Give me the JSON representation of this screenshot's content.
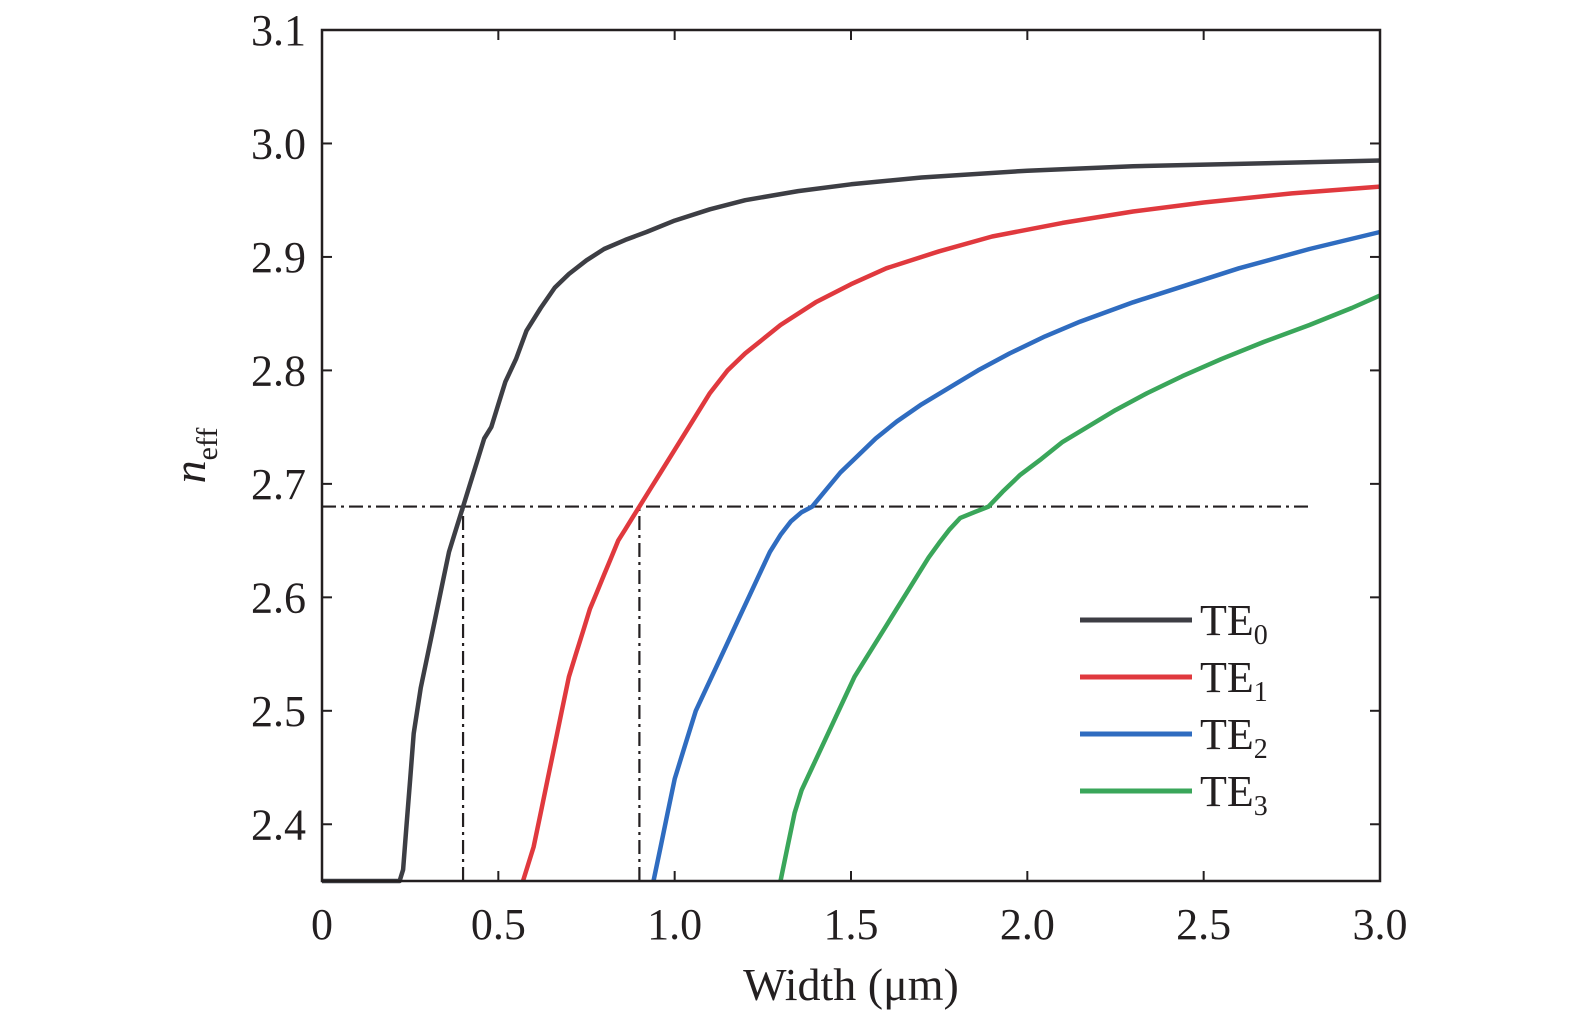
{
  "chart_data": {
    "type": "line",
    "xlabel": "Width (μm)",
    "ylabel": {
      "main": "n",
      "sub": "eff"
    },
    "xlim": [
      0,
      3.0
    ],
    "ylim": [
      2.35,
      3.1
    ],
    "x_ticks": [
      0,
      0.5,
      1.0,
      1.5,
      2.0,
      2.5,
      3.0
    ],
    "x_tick_labels": [
      "0",
      "0.5",
      "1.0",
      "1.5",
      "2.0",
      "2.5",
      "3.0"
    ],
    "y_ticks": [
      2.4,
      2.5,
      2.6,
      2.7,
      2.8,
      2.9,
      3.0,
      3.1
    ],
    "y_tick_labels": [
      "2.4",
      "2.5",
      "2.6",
      "2.7",
      "2.8",
      "2.9",
      "3.0",
      "3.1"
    ],
    "grid": false,
    "legend_position": "lower-right",
    "series": [
      {
        "name": {
          "main": "TE",
          "sub": "0"
        },
        "color": "#3d3e44",
        "x": [
          0.0,
          0.22,
          0.23,
          0.24,
          0.25,
          0.26,
          0.28,
          0.3,
          0.32,
          0.34,
          0.36,
          0.38,
          0.4,
          0.42,
          0.44,
          0.46,
          0.48,
          0.5,
          0.52,
          0.55,
          0.58,
          0.62,
          0.66,
          0.7,
          0.75,
          0.8,
          0.86,
          0.92,
          1.0,
          1.1,
          1.2,
          1.35,
          1.5,
          1.7,
          2.0,
          2.3,
          2.6,
          3.0
        ],
        "y": [
          2.35,
          2.35,
          2.36,
          2.4,
          2.44,
          2.48,
          2.52,
          2.55,
          2.58,
          2.61,
          2.64,
          2.66,
          2.68,
          2.7,
          2.72,
          2.74,
          2.75,
          2.77,
          2.79,
          2.81,
          2.835,
          2.855,
          2.873,
          2.885,
          2.897,
          2.907,
          2.915,
          2.922,
          2.932,
          2.942,
          2.95,
          2.958,
          2.964,
          2.97,
          2.976,
          2.98,
          2.982,
          2.985
        ]
      },
      {
        "name": {
          "main": "TE",
          "sub": "1"
        },
        "color": "#e0393e",
        "x": [
          0.57,
          0.6,
          0.62,
          0.64,
          0.66,
          0.68,
          0.7,
          0.72,
          0.74,
          0.76,
          0.78,
          0.8,
          0.82,
          0.84,
          0.86,
          0.88,
          0.9,
          0.93,
          0.96,
          1.0,
          1.05,
          1.1,
          1.15,
          1.2,
          1.3,
          1.4,
          1.5,
          1.6,
          1.75,
          1.9,
          2.1,
          2.3,
          2.5,
          2.75,
          3.0
        ],
        "y": [
          2.35,
          2.38,
          2.41,
          2.44,
          2.47,
          2.5,
          2.53,
          2.55,
          2.57,
          2.59,
          2.605,
          2.62,
          2.635,
          2.65,
          2.66,
          2.67,
          2.68,
          2.695,
          2.71,
          2.73,
          2.755,
          2.78,
          2.8,
          2.815,
          2.84,
          2.86,
          2.876,
          2.89,
          2.905,
          2.918,
          2.93,
          2.94,
          2.948,
          2.956,
          2.962
        ]
      },
      {
        "name": {
          "main": "TE",
          "sub": "2"
        },
        "color": "#2f6cc0",
        "x": [
          0.94,
          0.96,
          0.98,
          1.0,
          1.03,
          1.06,
          1.09,
          1.12,
          1.15,
          1.18,
          1.21,
          1.24,
          1.27,
          1.3,
          1.33,
          1.36,
          1.39,
          1.43,
          1.47,
          1.52,
          1.57,
          1.63,
          1.7,
          1.78,
          1.86,
          1.95,
          2.05,
          2.15,
          2.3,
          2.45,
          2.6,
          2.8,
          3.0
        ],
        "y": [
          2.35,
          2.38,
          2.41,
          2.44,
          2.47,
          2.5,
          2.52,
          2.54,
          2.56,
          2.58,
          2.6,
          2.62,
          2.64,
          2.655,
          2.667,
          2.675,
          2.68,
          2.695,
          2.71,
          2.725,
          2.74,
          2.755,
          2.77,
          2.785,
          2.8,
          2.815,
          2.83,
          2.843,
          2.86,
          2.875,
          2.89,
          2.907,
          2.922
        ]
      },
      {
        "name": {
          "main": "TE",
          "sub": "3"
        },
        "color": "#3aa65a",
        "x": [
          1.3,
          1.32,
          1.34,
          1.36,
          1.39,
          1.42,
          1.45,
          1.48,
          1.51,
          1.54,
          1.57,
          1.6,
          1.63,
          1.66,
          1.69,
          1.72,
          1.75,
          1.78,
          1.81,
          1.85,
          1.89,
          1.93,
          1.98,
          2.04,
          2.1,
          2.17,
          2.25,
          2.34,
          2.44,
          2.55,
          2.67,
          2.8,
          2.92,
          3.0
        ],
        "y": [
          2.35,
          2.38,
          2.41,
          2.43,
          2.45,
          2.47,
          2.49,
          2.51,
          2.53,
          2.545,
          2.56,
          2.575,
          2.59,
          2.605,
          2.62,
          2.635,
          2.648,
          2.66,
          2.67,
          2.675,
          2.68,
          2.693,
          2.708,
          2.722,
          2.737,
          2.75,
          2.765,
          2.78,
          2.795,
          2.81,
          2.825,
          2.84,
          2.855,
          2.866
        ]
      }
    ],
    "reference_lines": {
      "horizontal": {
        "y": 2.68,
        "x_from": 0,
        "x_to": 2.8
      },
      "vertical": [
        {
          "x": 0.4,
          "y_from": 2.35,
          "y_to": 2.68
        },
        {
          "x": 0.9,
          "y_from": 2.35,
          "y_to": 2.68
        }
      ],
      "style": "dash-dot",
      "color": "#231f20"
    }
  }
}
